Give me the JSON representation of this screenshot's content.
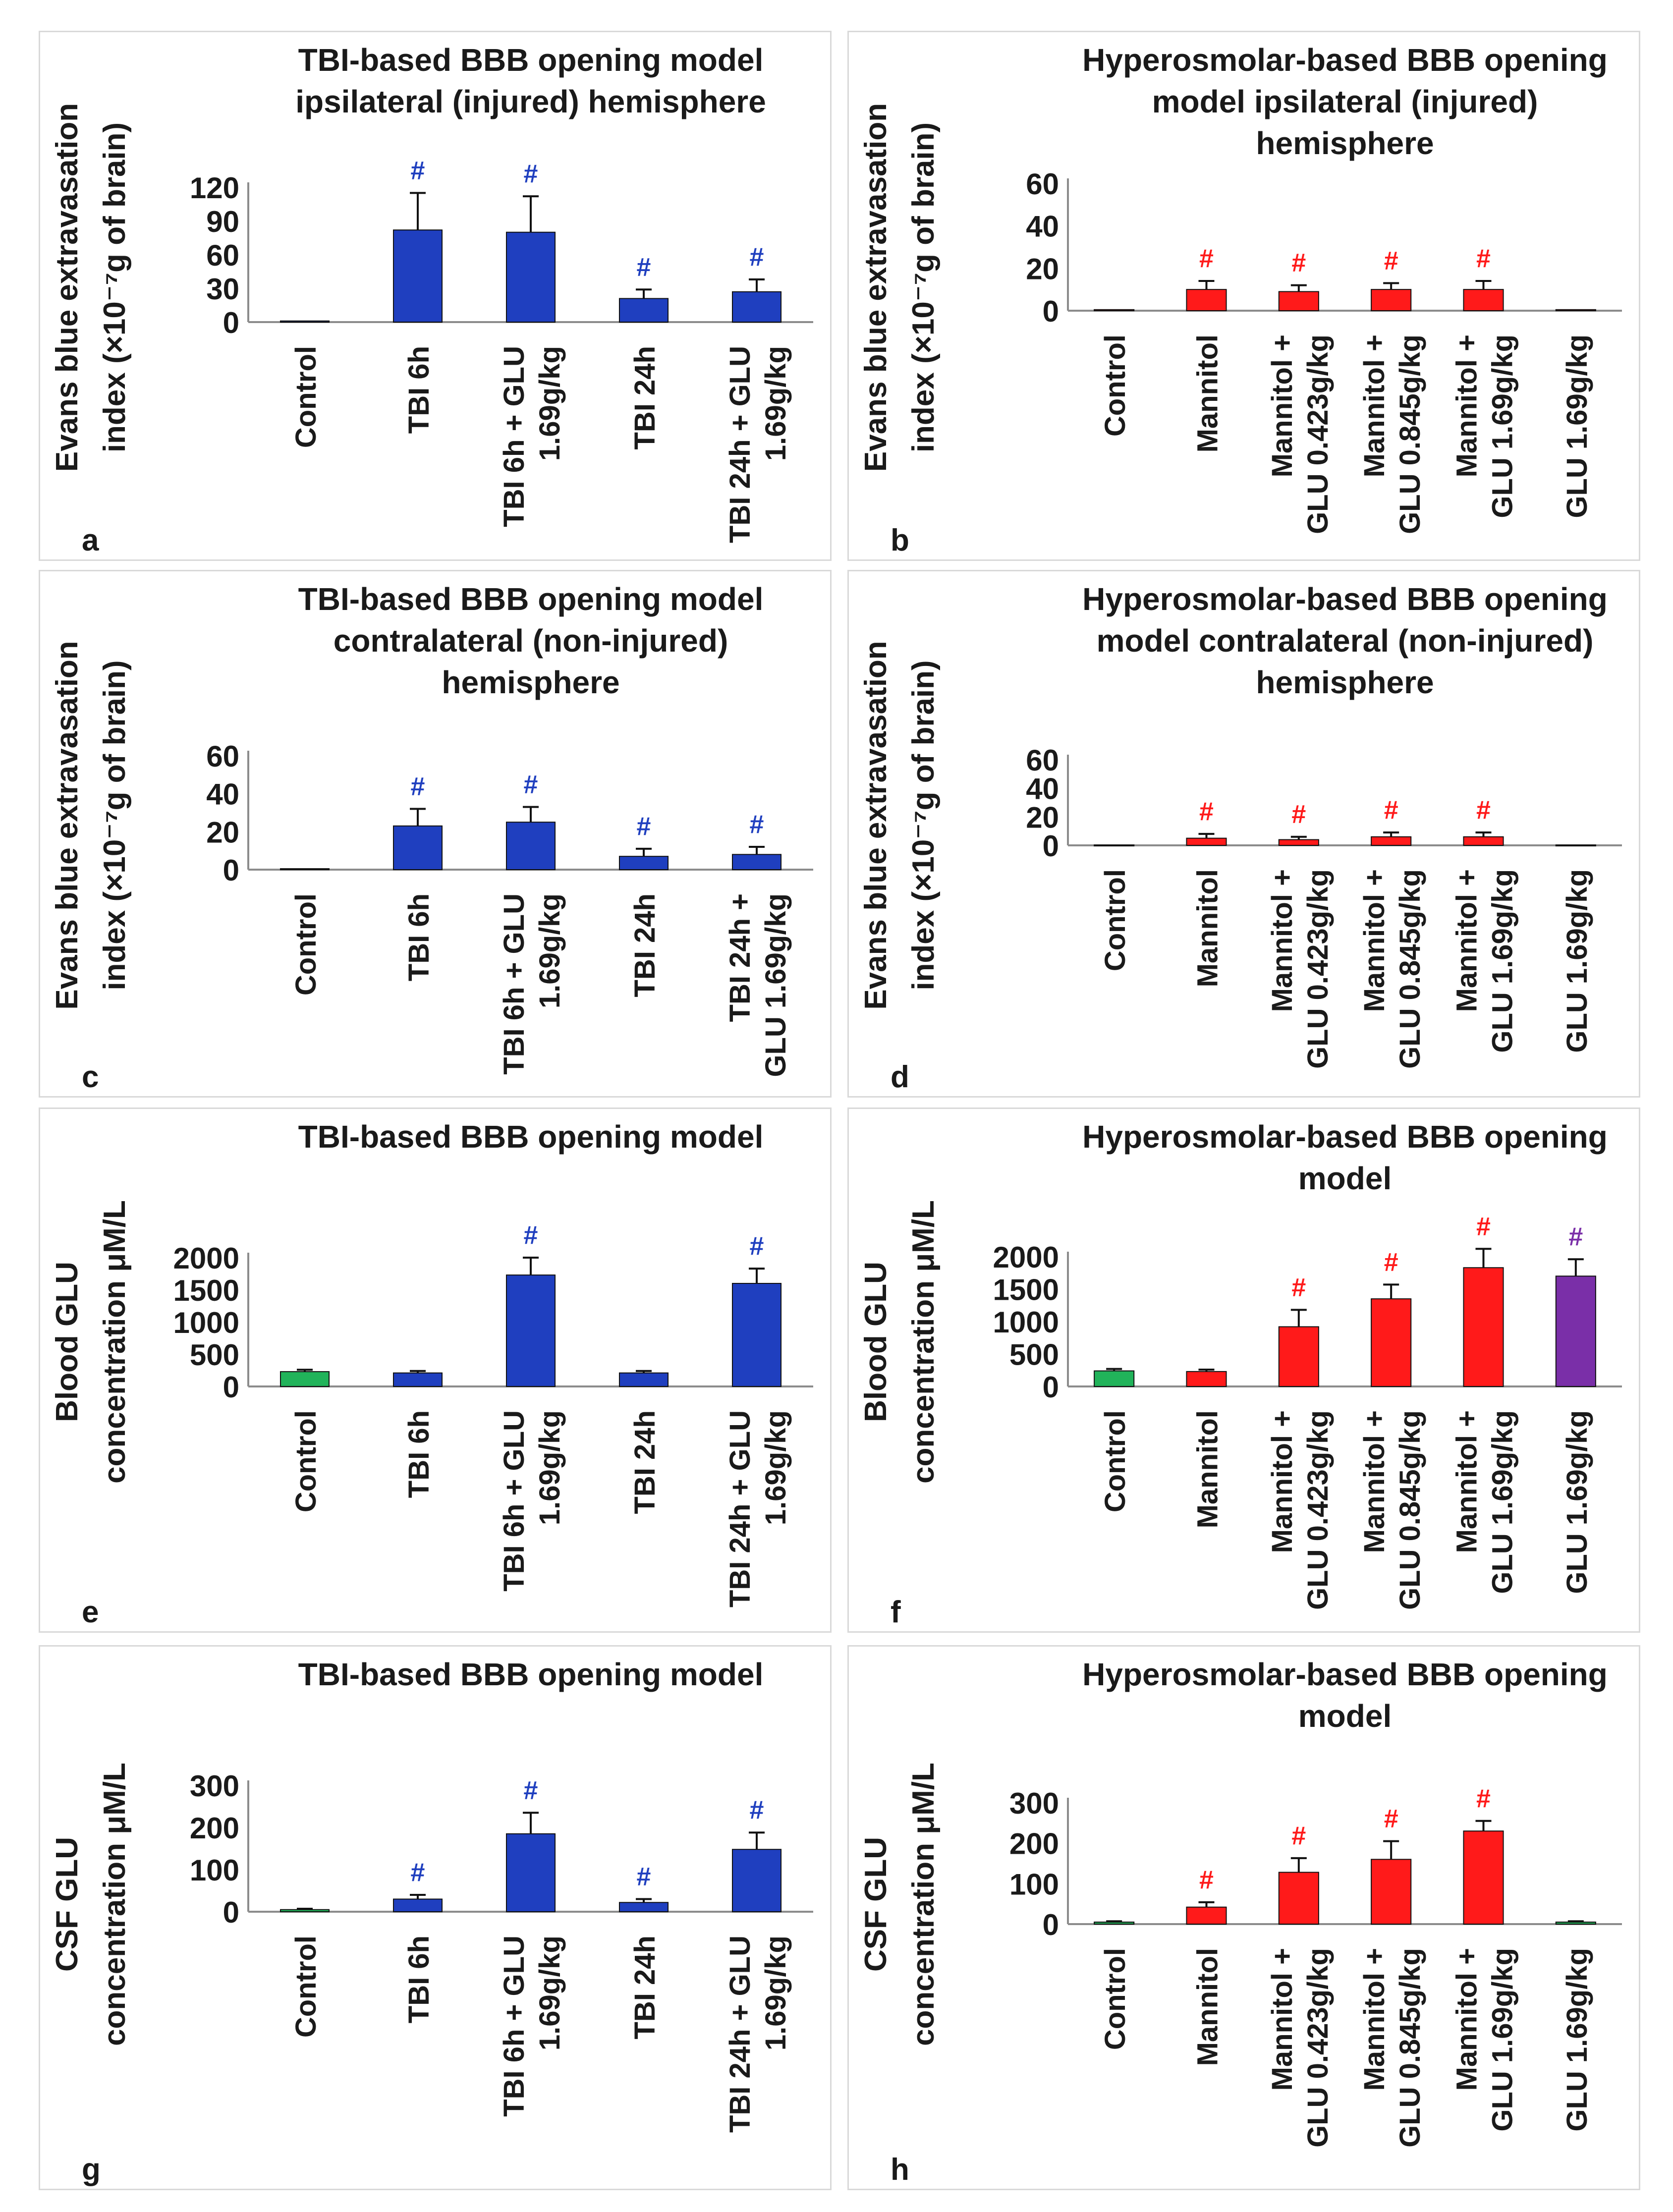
{
  "chart_data": [
    {
      "type": "bar",
      "panel_letter": "a",
      "title": [
        "TBI-based BBB opening model",
        "ipsilateral  (injured) hemisphere"
      ],
      "ylabel": [
        "Evans blue extravasation",
        "index (×10⁻⁷g of brain)"
      ],
      "ylim": [
        0,
        120
      ],
      "yticks": [
        "0",
        "30",
        "60",
        "90",
        "120"
      ],
      "categories": [
        [
          "Control"
        ],
        [
          "TBI 6h"
        ],
        [
          "TBI 6h + GLU",
          "1.69g/kg"
        ],
        [
          "TBI 24h"
        ],
        [
          "TBI 24h + GLU",
          "1.69g/kg"
        ]
      ],
      "values": [
        1,
        82,
        80,
        21,
        27
      ],
      "errors": [
        0,
        33,
        32,
        8,
        11
      ],
      "colors": [
        "#1f3fbf",
        "#1f3fbf",
        "#1f3fbf",
        "#1f3fbf",
        "#1f3fbf"
      ],
      "markers": [
        "",
        "#",
        "#",
        "#",
        "#"
      ],
      "marker_colors": [
        "#1f3fbf",
        "#1f3fbf",
        "#1f3fbf",
        "#1f3fbf",
        "#1f3fbf"
      ]
    },
    {
      "type": "bar",
      "panel_letter": "b",
      "title": [
        "Hyperosmolar-based BBB opening",
        "model ipsilateral  (injured)",
        "hemisphere"
      ],
      "ylabel": [
        "Evans blue extravasation",
        "index (×10⁻⁷g of brain)"
      ],
      "ylim": [
        0,
        60
      ],
      "yticks": [
        "0",
        "20",
        "40",
        "60"
      ],
      "categories": [
        [
          "Control"
        ],
        [
          "Mannitol"
        ],
        [
          "Mannitol +",
          "GLU 0.423g/kg"
        ],
        [
          "Mannitol +",
          "GLU 0.845g/kg"
        ],
        [
          "Mannitol +",
          "GLU 1.69g/kg"
        ],
        [
          "GLU 1.69g/kg"
        ]
      ],
      "values": [
        0.5,
        10,
        9,
        10,
        10,
        0.5
      ],
      "errors": [
        0,
        4,
        3,
        3,
        4,
        0
      ],
      "colors": [
        "#ff1a1a",
        "#ff1a1a",
        "#ff1a1a",
        "#ff1a1a",
        "#ff1a1a",
        "#ff1a1a"
      ],
      "markers": [
        "",
        "#",
        "#",
        "#",
        "#",
        ""
      ],
      "marker_colors": [
        "#ff1a1a",
        "#ff1a1a",
        "#ff1a1a",
        "#ff1a1a",
        "#ff1a1a",
        "#ff1a1a"
      ]
    },
    {
      "type": "bar",
      "panel_letter": "c",
      "title": [
        "TBI-based BBB opening model",
        "contralateral (non-injured)",
        "hemisphere"
      ],
      "ylabel": [
        "Evans blue extravasation",
        "index (×10⁻⁷g of brain)"
      ],
      "ylim": [
        0,
        60
      ],
      "yticks": [
        "0",
        "20",
        "40",
        "60"
      ],
      "categories": [
        [
          "Control"
        ],
        [
          "TBI 6h"
        ],
        [
          "TBI 6h + GLU",
          "1.69g/kg"
        ],
        [
          "TBI 24h"
        ],
        [
          "TBI 24h +",
          "GLU 1.69g/kg"
        ]
      ],
      "values": [
        0.5,
        23,
        25,
        7,
        8
      ],
      "errors": [
        0,
        9,
        8,
        4,
        4
      ],
      "colors": [
        "#1f3fbf",
        "#1f3fbf",
        "#1f3fbf",
        "#1f3fbf",
        "#1f3fbf"
      ],
      "markers": [
        "",
        "#",
        "#",
        "#",
        "#"
      ],
      "marker_colors": [
        "#1f3fbf",
        "#1f3fbf",
        "#1f3fbf",
        "#1f3fbf",
        "#1f3fbf"
      ]
    },
    {
      "type": "bar",
      "panel_letter": "d",
      "title": [
        "Hyperosmolar-based BBB opening",
        "model contralateral (non-injured)",
        "hemisphere"
      ],
      "ylabel": [
        "Evans blue extravasation",
        "index (×10⁻⁷g of brain)"
      ],
      "ylim": [
        0,
        60
      ],
      "yticks": [
        "0",
        "20",
        "40",
        "60"
      ],
      "categories": [
        [
          "Control"
        ],
        [
          "Mannitol"
        ],
        [
          "Mannitol +",
          "GLU 0.423g/kg"
        ],
        [
          "Mannitol +",
          "GLU 0.845g/kg"
        ],
        [
          "Mannitol +",
          "GLU 1.69g/kg"
        ],
        [
          "GLU 1.69g/kg"
        ]
      ],
      "values": [
        0.3,
        5,
        4,
        6,
        6,
        0.3
      ],
      "errors": [
        0,
        3,
        2,
        3,
        3,
        0
      ],
      "colors": [
        "#ff1a1a",
        "#ff1a1a",
        "#ff1a1a",
        "#ff1a1a",
        "#ff1a1a",
        "#ff1a1a"
      ],
      "markers": [
        "",
        "#",
        "#",
        "#",
        "#",
        ""
      ],
      "marker_colors": [
        "#ff1a1a",
        "#ff1a1a",
        "#ff1a1a",
        "#ff1a1a",
        "#ff1a1a",
        "#ff1a1a"
      ]
    },
    {
      "type": "bar",
      "panel_letter": "e",
      "title": [
        "TBI-based BBB opening model"
      ],
      "ylabel": [
        "Blood GLU",
        "concentration μM/L"
      ],
      "ylim": [
        0,
        2000
      ],
      "yticks": [
        "0",
        "500",
        "1000",
        "1500",
        "2000"
      ],
      "categories": [
        [
          "Control"
        ],
        [
          "TBI 6h"
        ],
        [
          "TBI 6h + GLU",
          "1.69g/kg"
        ],
        [
          "TBI 24h"
        ],
        [
          "TBI 24h + GLU",
          "1.69g/kg"
        ]
      ],
      "values": [
        230,
        210,
        1730,
        210,
        1600
      ],
      "errors": [
        30,
        30,
        270,
        30,
        230
      ],
      "colors": [
        "#21b35a",
        "#1f3fbf",
        "#1f3fbf",
        "#1f3fbf",
        "#1f3fbf"
      ],
      "markers": [
        "",
        "",
        "#",
        "",
        "#"
      ],
      "marker_colors": [
        "#1f3fbf",
        "#1f3fbf",
        "#1f3fbf",
        "#1f3fbf",
        "#1f3fbf"
      ]
    },
    {
      "type": "bar",
      "panel_letter": "f",
      "title": [
        "Hyperosmolar-based BBB opening",
        "model"
      ],
      "ylabel": [
        "Blood GLU",
        "concentration μM/L"
      ],
      "ylim": [
        0,
        2000
      ],
      "yticks": [
        "0",
        "500",
        "1000",
        "1500",
        "2000"
      ],
      "categories": [
        [
          "Control"
        ],
        [
          "Mannitol"
        ],
        [
          "Mannitol +",
          "GLU 0.423g/kg"
        ],
        [
          "Mannitol +",
          "GLU 0.845g/kg"
        ],
        [
          "Mannitol +",
          "GLU 1.69g/kg"
        ],
        [
          "GLU 1.69g/kg"
        ]
      ],
      "values": [
        240,
        230,
        920,
        1350,
        1830,
        1700
      ],
      "errors": [
        30,
        30,
        260,
        220,
        290,
        260
      ],
      "colors": [
        "#21b35a",
        "#ff1a1a",
        "#ff1a1a",
        "#ff1a1a",
        "#ff1a1a",
        "#7a2fa8"
      ],
      "markers": [
        "",
        "",
        "#",
        "#",
        "#",
        "#"
      ],
      "marker_colors": [
        "#ff1a1a",
        "#ff1a1a",
        "#ff1a1a",
        "#ff1a1a",
        "#ff1a1a",
        "#7a2fa8"
      ]
    },
    {
      "type": "bar",
      "panel_letter": "g",
      "title": [
        "TBI-based BBB opening model"
      ],
      "ylabel": [
        "CSF GLU",
        "concentration  μM/L"
      ],
      "ylim": [
        0,
        300
      ],
      "yticks": [
        "0",
        "100",
        "200",
        "300"
      ],
      "categories": [
        [
          "Control"
        ],
        [
          "TBI 6h"
        ],
        [
          "TBI 6h + GLU",
          "1.69g/kg"
        ],
        [
          "TBI 24h"
        ],
        [
          "TBI 24h + GLU",
          "1.69g/kg"
        ]
      ],
      "values": [
        5,
        30,
        185,
        22,
        148
      ],
      "errors": [
        2,
        10,
        50,
        8,
        40
      ],
      "colors": [
        "#21b35a",
        "#1f3fbf",
        "#1f3fbf",
        "#1f3fbf",
        "#1f3fbf"
      ],
      "markers": [
        "",
        "#",
        "#",
        "#",
        "#"
      ],
      "marker_colors": [
        "#1f3fbf",
        "#1f3fbf",
        "#1f3fbf",
        "#1f3fbf",
        "#1f3fbf"
      ]
    },
    {
      "type": "bar",
      "panel_letter": "h",
      "title": [
        "Hyperosmolar-based BBB opening",
        "model"
      ],
      "ylabel": [
        "CSF GLU",
        "concentration  μM/L"
      ],
      "ylim": [
        0,
        300
      ],
      "yticks": [
        "0",
        "100",
        "200",
        "300"
      ],
      "categories": [
        [
          "Control"
        ],
        [
          "Mannitol"
        ],
        [
          "Mannitol +",
          "GLU 0.423g/kg"
        ],
        [
          "Mannitol +",
          "GLU 0.845g/kg"
        ],
        [
          "Mannitol +",
          "GLU 1.69g/kg"
        ],
        [
          "GLU 1.69g/kg"
        ]
      ],
      "values": [
        5,
        42,
        128,
        160,
        230,
        5
      ],
      "errors": [
        2,
        12,
        35,
        45,
        25,
        2
      ],
      "colors": [
        "#21b35a",
        "#ff1a1a",
        "#ff1a1a",
        "#ff1a1a",
        "#ff1a1a",
        "#21b35a"
      ],
      "markers": [
        "",
        "#",
        "#",
        "#",
        "#",
        ""
      ],
      "marker_colors": [
        "#ff1a1a",
        "#ff1a1a",
        "#ff1a1a",
        "#ff1a1a",
        "#ff1a1a",
        "#ff1a1a"
      ]
    }
  ]
}
